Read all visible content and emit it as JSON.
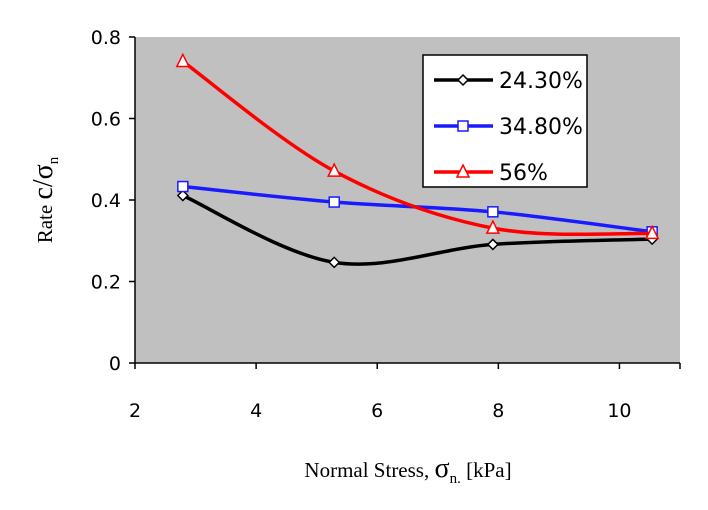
{
  "chart_data": {
    "type": "line",
    "smoothed": true,
    "xlabel": {
      "main": "Normal Stress, ",
      "symbol": "σ",
      "sub": "n.",
      "unit": " [kPa]"
    },
    "ylabel": {
      "main": "Rate ",
      "symbol": "c/σ",
      "sub": "n"
    },
    "xlim": [
      2,
      11
    ],
    "ylim": [
      0,
      0.8
    ],
    "xticks": [
      "2",
      "4",
      "6",
      "8",
      "10"
    ],
    "yticks": [
      "0",
      "0.2",
      "0.4",
      "0.6",
      "0.8"
    ],
    "grid": false,
    "plot_background": "#c0c0c0",
    "legend_position": "top-right",
    "series": [
      {
        "name": "24.30%",
        "color": "#000000",
        "marker": "diamond",
        "x": [
          2.79,
          5.29,
          7.91,
          10.54
        ],
        "y": [
          0.411,
          0.247,
          0.291,
          0.304
        ]
      },
      {
        "name": "34.80%",
        "color": "#1a1aff",
        "marker": "square",
        "x": [
          2.79,
          5.29,
          7.91,
          10.54
        ],
        "y": [
          0.433,
          0.395,
          0.371,
          0.322
        ]
      },
      {
        "name": "56%",
        "color": "#ff0000",
        "marker": "triangle",
        "x": [
          2.79,
          5.29,
          7.91,
          10.54
        ],
        "y": [
          0.74,
          0.471,
          0.331,
          0.318
        ]
      }
    ]
  }
}
